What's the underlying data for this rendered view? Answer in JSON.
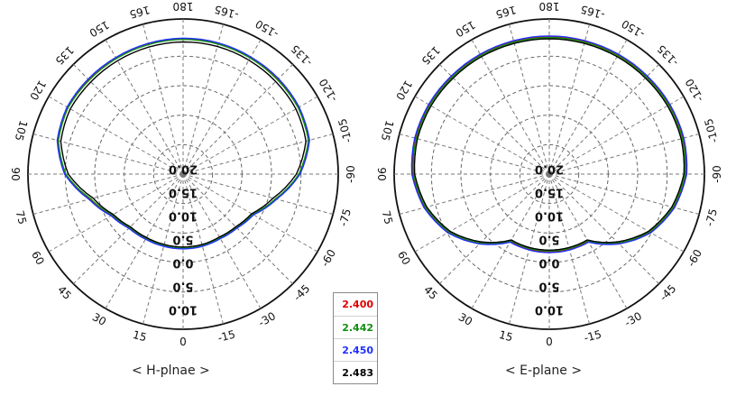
{
  "chart_data": [
    {
      "type": "polar",
      "caption": "< H-plnae >",
      "angle_labels": [
        "180",
        "165",
        "150",
        "135",
        "120",
        "105",
        "90",
        "75",
        "60",
        "45",
        "30",
        "15",
        "0",
        "-15",
        "-30",
        "-45",
        "-60",
        "-75",
        "-90",
        "-105",
        "-120",
        "-135",
        "-150",
        "-165"
      ],
      "radial_labels": [
        "20.0",
        "15.0",
        "10.0",
        "5.0",
        "0.0",
        "5.0",
        "10.0"
      ],
      "grid": true,
      "series": [
        {
          "name": "2.400",
          "color": "#e00000",
          "values": [
            18.6,
            18.4,
            18.2,
            18.0,
            18.0,
            16.8,
            13.0,
            6.0,
            1.5,
            -0.5,
            -1.0,
            -1.0,
            -1.0,
            -1.0,
            -1.2,
            -0.6,
            1.0,
            6.0,
            12.5,
            17.0,
            18.0,
            18.2,
            18.4,
            18.6
          ]
        },
        {
          "name": "2.442",
          "color": "#109010",
          "values": [
            18.4,
            18.2,
            18.0,
            17.8,
            17.8,
            16.6,
            12.8,
            5.8,
            1.3,
            -0.7,
            -1.2,
            -1.1,
            -1.1,
            -1.1,
            -1.3,
            -0.8,
            0.8,
            5.8,
            12.3,
            16.8,
            17.8,
            18.0,
            18.2,
            18.4
          ]
        },
        {
          "name": "2.450",
          "color": "#2030ff",
          "values": [
            18.8,
            18.6,
            18.4,
            18.3,
            18.2,
            17.0,
            13.2,
            6.4,
            1.8,
            -0.3,
            -0.8,
            -0.9,
            -0.9,
            -0.9,
            -1.0,
            -0.4,
            1.2,
            6.2,
            12.7,
            17.2,
            18.2,
            18.5,
            18.6,
            18.8
          ]
        },
        {
          "name": "2.483",
          "color": "#000000",
          "values": [
            17.6,
            17.4,
            17.2,
            17.0,
            17.0,
            15.8,
            12.0,
            5.0,
            1.0,
            -1.0,
            -1.4,
            -1.5,
            -1.5,
            -1.5,
            -1.6,
            -1.0,
            0.5,
            5.0,
            11.5,
            16.0,
            17.0,
            17.2,
            17.4,
            17.6
          ]
        }
      ]
    },
    {
      "type": "polar",
      "caption": "< E-plane >",
      "angle_labels": [
        "180",
        "165",
        "150",
        "135",
        "120",
        "105",
        "90",
        "75",
        "60",
        "45",
        "30",
        "15",
        "0",
        "-15",
        "-30",
        "-45",
        "-60",
        "-75",
        "-90",
        "-105",
        "-120",
        "-135",
        "-150",
        "-165"
      ],
      "radial_labels": [
        "20.0",
        "15.0",
        "10.0",
        "5.0",
        "0.0",
        "5.0",
        "10.0"
      ],
      "grid": true,
      "series": [
        {
          "name": "2.400",
          "color": "#e00000",
          "values": [
            19.2,
            19.2,
            19.3,
            19.4,
            19.6,
            19.6,
            19.0,
            16.5,
            12.5,
            6.5,
            0.0,
            0.0,
            0.0,
            0.0,
            0.0,
            6.5,
            12.5,
            16.5,
            19.0,
            19.6,
            19.6,
            19.4,
            19.3,
            19.2
          ]
        },
        {
          "name": "2.442",
          "color": "#109010",
          "values": [
            19.0,
            19.0,
            19.1,
            19.2,
            19.4,
            19.4,
            18.8,
            16.3,
            12.3,
            6.3,
            -0.2,
            -0.2,
            -0.2,
            -0.2,
            -0.2,
            6.3,
            12.3,
            16.3,
            18.8,
            19.4,
            19.4,
            19.2,
            19.1,
            19.0
          ]
        },
        {
          "name": "2.450",
          "color": "#2030ff",
          "values": [
            19.5,
            19.5,
            19.6,
            19.7,
            19.9,
            19.9,
            19.3,
            16.8,
            12.8,
            6.8,
            0.3,
            0.3,
            0.3,
            0.3,
            0.3,
            6.8,
            12.8,
            16.8,
            19.3,
            19.9,
            19.9,
            19.7,
            19.6,
            19.5
          ]
        },
        {
          "name": "2.483",
          "color": "#000000",
          "values": [
            18.6,
            18.6,
            18.7,
            18.8,
            19.0,
            19.0,
            18.4,
            15.9,
            11.9,
            5.9,
            -0.5,
            -0.5,
            -0.5,
            -0.5,
            -0.5,
            5.9,
            11.9,
            15.9,
            18.4,
            19.0,
            19.0,
            18.8,
            18.7,
            18.6
          ]
        }
      ]
    }
  ],
  "legend": {
    "items": [
      {
        "label": "2.400",
        "color": "#e00000"
      },
      {
        "label": "2.442",
        "color": "#109010"
      },
      {
        "label": "2.450",
        "color": "#2030ff"
      },
      {
        "label": "2.483",
        "color": "#000000"
      }
    ]
  }
}
